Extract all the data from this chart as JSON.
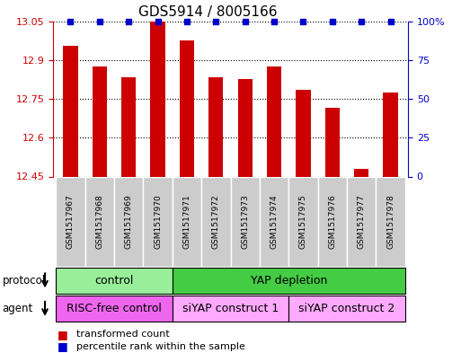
{
  "title": "GDS5914 / 8005166",
  "samples": [
    "GSM1517967",
    "GSM1517968",
    "GSM1517969",
    "GSM1517970",
    "GSM1517971",
    "GSM1517972",
    "GSM1517973",
    "GSM1517974",
    "GSM1517975",
    "GSM1517976",
    "GSM1517977",
    "GSM1517978"
  ],
  "bar_values": [
    12.955,
    12.875,
    12.835,
    13.05,
    12.975,
    12.835,
    12.825,
    12.875,
    12.785,
    12.715,
    12.48,
    12.775
  ],
  "percentile_values": [
    100,
    100,
    100,
    100,
    100,
    100,
    100,
    100,
    100,
    100,
    100,
    100
  ],
  "bar_color": "#cc0000",
  "percentile_color": "#0000cc",
  "ylim_left": [
    12.45,
    13.05
  ],
  "ylim_right": [
    0,
    100
  ],
  "yticks_left": [
    12.45,
    12.6,
    12.75,
    12.9,
    13.05
  ],
  "yticks_right": [
    0,
    25,
    50,
    75,
    100
  ],
  "ytick_labels_right": [
    "0",
    "25",
    "50",
    "75",
    "100%"
  ],
  "protocol_groups": [
    {
      "label": "control",
      "start": 0,
      "end": 3,
      "color": "#99ee99"
    },
    {
      "label": "YAP depletion",
      "start": 4,
      "end": 11,
      "color": "#44cc44"
    }
  ],
  "agent_groups": [
    {
      "label": "RISC-free control",
      "start": 0,
      "end": 3,
      "color": "#ee66ee"
    },
    {
      "label": "siYAP construct 1",
      "start": 4,
      "end": 7,
      "color": "#ffaaff"
    },
    {
      "label": "siYAP construct 2",
      "start": 8,
      "end": 11,
      "color": "#ffaaff"
    }
  ],
  "legend_items": [
    {
      "label": "transformed count",
      "color": "#cc0000"
    },
    {
      "label": "percentile rank within the sample",
      "color": "#0000cc"
    }
  ],
  "protocol_label": "protocol",
  "agent_label": "agent",
  "background_color": "#ffffff",
  "bar_width": 0.5,
  "xlabel_bg": "#cccccc"
}
